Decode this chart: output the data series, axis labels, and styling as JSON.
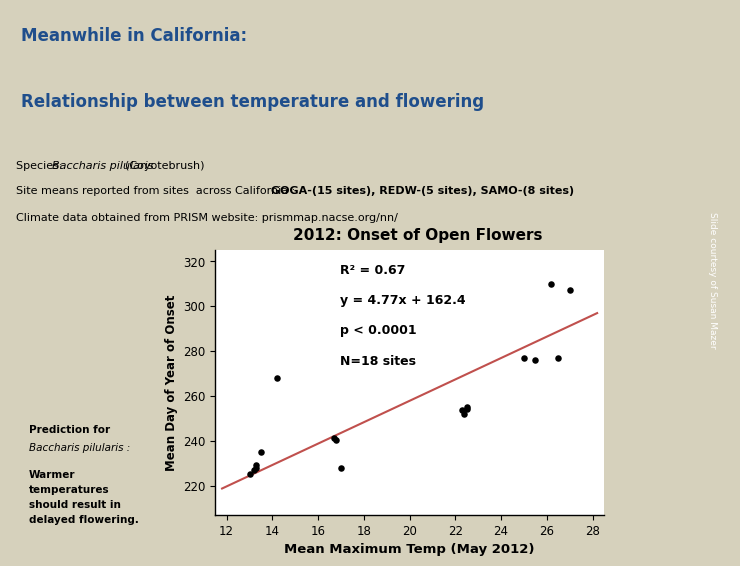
{
  "title_line1": "Meanwhile in California:",
  "title_line2": "Relationship between temperature and flowering",
  "species_text": "Species: Baccharis pilularis (Coyotebrush)",
  "site_text_plain": "Site means reported from sites  across California : ",
  "site_text_bold": "GOGA-(15 sites), REDW-(5 sites), SAMO-(8 sites)",
  "climate_text": "Climate data obtained from PRISM website: prismmap.nacse.org/nn/",
  "chart_title": "2012: Onset of Open Flowers",
  "xlabel": "Mean Maximum Temp (May 2012)",
  "ylabel": "Mean Day of Year of Onset",
  "r2_text": "R² = 0.67",
  "eq_text": "y = 4.77x + 162.4",
  "p_text": "p < 0.0001",
  "n_text": "N=18 sites",
  "slope": 4.77,
  "intercept": 162.4,
  "x_data": [
    13.0,
    13.2,
    13.3,
    13.3,
    13.5,
    14.2,
    16.7,
    16.8,
    17.0,
    22.3,
    22.4,
    22.5,
    22.5,
    25.0,
    25.5,
    26.2,
    26.5,
    27.0
  ],
  "y_data": [
    225.0,
    227.0,
    229.0,
    228.0,
    235.0,
    268.0,
    241.0,
    240.5,
    228.0,
    253.5,
    252.0,
    255.0,
    254.0,
    277.0,
    276.0,
    310.0,
    277.0,
    307.0
  ],
  "xlim": [
    11.5,
    28.5
  ],
  "ylim": [
    207,
    325
  ],
  "xticks": [
    12,
    14,
    16,
    18,
    20,
    22,
    24,
    26,
    28
  ],
  "yticks": [
    220,
    240,
    260,
    280,
    300,
    320
  ],
  "bg_color": "#D6D1BC",
  "plot_bg": "#FFFFFF",
  "info_box_color": "#FFFFFF",
  "pred_box_color": "#D9E8C4",
  "title_color": "#1F4E8C",
  "line_color": "#C0504D",
  "dot_color": "#000000",
  "sidebar_orange": "#E8961E",
  "sidebar_green": "#6DAA3A",
  "sidebar_blue": "#4472C4",
  "prediction_title": "Prediction for",
  "prediction_species": "Baccharis pilularis :",
  "prediction_body": "Warmer\ntemperatures\nshould result in\ndelayed flowering."
}
